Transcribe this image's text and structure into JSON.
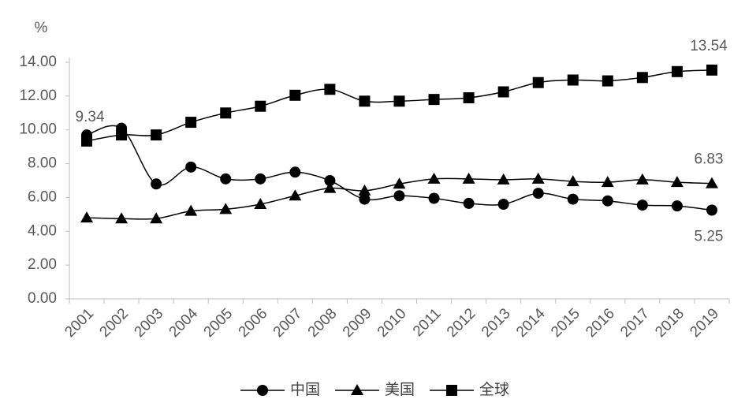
{
  "chart_data": {
    "type": "line",
    "y_label": "%",
    "categories": [
      "2001",
      "2002",
      "2003",
      "2004",
      "2005",
      "2006",
      "2007",
      "2008",
      "2009",
      "2010",
      "2011",
      "2012",
      "2013",
      "2014",
      "2015",
      "2016",
      "2017",
      "2018",
      "2019"
    ],
    "ylim": [
      0,
      14
    ],
    "yticks": [
      {
        "value": 0,
        "label": "0.00"
      },
      {
        "value": 2,
        "label": "2.00"
      },
      {
        "value": 4,
        "label": "4.00"
      },
      {
        "value": 6,
        "label": "6.00"
      },
      {
        "value": 8,
        "label": "8.00"
      },
      {
        "value": 10,
        "label": "10.00"
      },
      {
        "value": 12,
        "label": "12.00"
      },
      {
        "value": 14,
        "label": "14.00"
      }
    ],
    "smooth": true,
    "series": [
      {
        "name": "中国",
        "color": "#000000",
        "marker": "circle",
        "values": [
          9.7,
          10.1,
          6.8,
          7.8,
          7.1,
          7.1,
          7.5,
          7.0,
          5.9,
          6.1,
          5.95,
          5.65,
          5.6,
          6.25,
          5.9,
          5.8,
          5.55,
          5.5,
          5.25
        ],
        "value_labels": [
          null,
          null,
          null,
          null,
          null,
          null,
          null,
          null,
          null,
          null,
          null,
          null,
          null,
          null,
          null,
          null,
          null,
          null,
          "5.25"
        ]
      },
      {
        "name": "美国",
        "color": "#000000",
        "marker": "triangle",
        "values": [
          4.8,
          4.75,
          4.75,
          5.2,
          5.3,
          5.6,
          6.1,
          6.55,
          6.4,
          6.8,
          7.1,
          7.1,
          7.05,
          7.1,
          6.95,
          6.9,
          7.05,
          6.9,
          6.83
        ],
        "value_labels": [
          null,
          null,
          null,
          null,
          null,
          null,
          null,
          null,
          null,
          null,
          null,
          null,
          null,
          null,
          null,
          null,
          null,
          null,
          "6.83"
        ]
      },
      {
        "name": "全球",
        "color": "#000000",
        "marker": "square",
        "values": [
          9.34,
          9.7,
          9.7,
          10.45,
          11.0,
          11.4,
          12.05,
          12.4,
          11.7,
          11.7,
          11.8,
          11.9,
          12.25,
          12.8,
          12.95,
          12.9,
          13.1,
          13.45,
          13.54
        ],
        "value_labels": [
          "9.34",
          null,
          null,
          null,
          null,
          null,
          null,
          null,
          null,
          null,
          null,
          null,
          null,
          null,
          null,
          null,
          null,
          null,
          "13.54"
        ]
      }
    ]
  }
}
